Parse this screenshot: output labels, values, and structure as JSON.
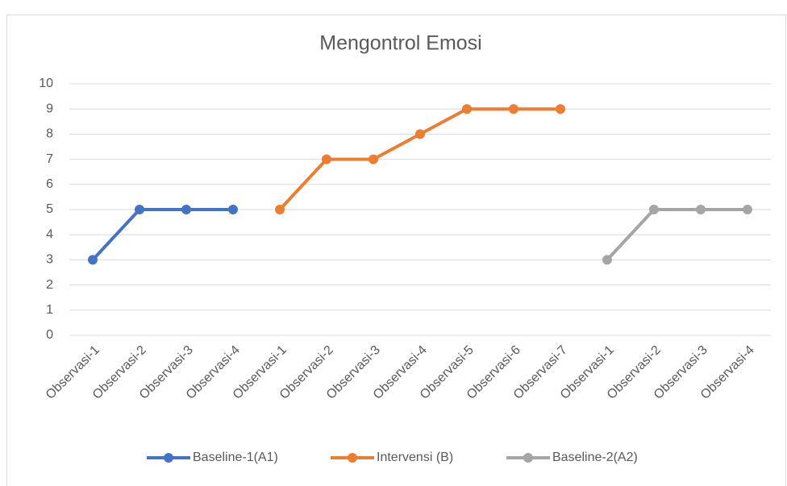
{
  "chart_data": {
    "type": "line",
    "title": "Mengontrol Emosi",
    "categories": [
      "Observasi-1",
      "Observasi-2",
      "Observasi-3",
      "Observasi-4",
      "Observasi-1",
      "Observasi-2",
      "Observasi-3",
      "Observasi-4",
      "Observasi-5",
      "Observasi-6",
      "Observasi-7",
      "Observasi-1",
      "Observasi-2",
      "Observasi-3",
      "Observasi-4"
    ],
    "series": [
      {
        "name": "Baseline-1(A1)",
        "color": "#4472c4",
        "values": [
          3,
          5,
          5,
          5,
          null,
          null,
          null,
          null,
          null,
          null,
          null,
          null,
          null,
          null,
          null
        ]
      },
      {
        "name": "Intervensi (B)",
        "color": "#ed7d31",
        "values": [
          null,
          null,
          null,
          null,
          5,
          7,
          7,
          8,
          9,
          9,
          9,
          null,
          null,
          null,
          null
        ]
      },
      {
        "name": "Baseline-2(A2)",
        "color": "#a5a5a5",
        "values": [
          null,
          null,
          null,
          null,
          null,
          null,
          null,
          null,
          null,
          null,
          null,
          3,
          5,
          5,
          5
        ]
      }
    ],
    "ylim": [
      0,
      10
    ],
    "yticks": [
      0,
      1,
      2,
      3,
      4,
      5,
      6,
      7,
      8,
      9,
      10
    ],
    "grid": true,
    "legend": "bottom"
  }
}
